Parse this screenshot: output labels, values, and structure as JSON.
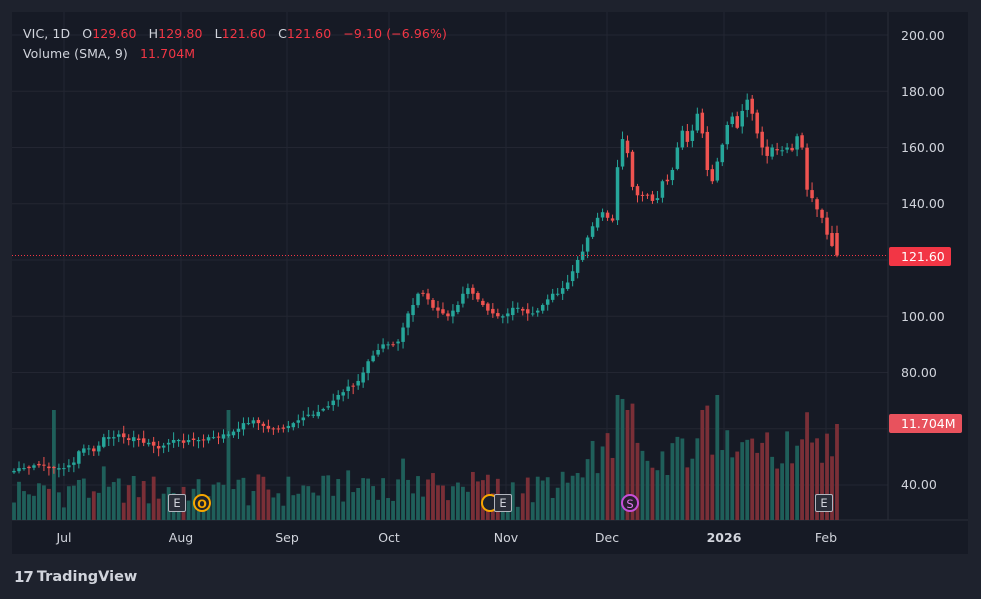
{
  "legend": {
    "symbol": "VIC, 1D",
    "o_key": "O",
    "open": "129.60",
    "h_key": "H",
    "high": "129.80",
    "l_key": "L",
    "low": "121.60",
    "c_key": "C",
    "close": "121.60",
    "change": "−9.10 (−6.96%)",
    "volume_label": "Volume (SMA, 9)",
    "volume_value": "11.704M"
  },
  "price_tag": "121.60",
  "volume_tag": "11.704M",
  "y_axis": [
    "200.00",
    "180.00",
    "160.00",
    "140.00",
    "121.60",
    "100.00",
    "80.00",
    "40.00"
  ],
  "x_axis": [
    "Jul",
    "Aug",
    "Sep",
    "Oct",
    "Nov",
    "Dec",
    "2026",
    "Feb"
  ],
  "events": [
    "E",
    "O",
    "E",
    "S",
    "E"
  ],
  "brand": {
    "logo": "17",
    "name": "TradingView"
  },
  "colors": {
    "up": "#26a69a",
    "down": "#ef5350",
    "background": "#161a25",
    "accent": "#f23645"
  },
  "chart_data": {
    "type": "candlestick",
    "symbol": "VIC",
    "interval": "1D",
    "y_range": [
      30,
      208
    ],
    "last_close": 121.6,
    "candles_approx_close": [
      45,
      46,
      46,
      46,
      47,
      47,
      47,
      46,
      46,
      46,
      46,
      47,
      48,
      52,
      53,
      53,
      52,
      54,
      57,
      57,
      57,
      58,
      57,
      56,
      57,
      56,
      55,
      55,
      54,
      53,
      54,
      55,
      56,
      56,
      55,
      56,
      56,
      56,
      56,
      57,
      57,
      57,
      58,
      58,
      59,
      60,
      62,
      62,
      63,
      62,
      61,
      60,
      60,
      60,
      60,
      61,
      62,
      63,
      64,
      65,
      65,
      66,
      67,
      68,
      70,
      72,
      73,
      75,
      75,
      77,
      80,
      84,
      86,
      88,
      90,
      90,
      90,
      91,
      96,
      101,
      104,
      108,
      108,
      106,
      103,
      102,
      101,
      100,
      102,
      104,
      108,
      110,
      108,
      106,
      104,
      102,
      101,
      100,
      100,
      101,
      103,
      103,
      102,
      101,
      101,
      102,
      104,
      106,
      108,
      108,
      110,
      112,
      116,
      120,
      123,
      128,
      132,
      135,
      137,
      135,
      134,
      153,
      163,
      158,
      146,
      143,
      143,
      143,
      141,
      142,
      148,
      148,
      152,
      160,
      166,
      162,
      166,
      172,
      165,
      152,
      148,
      155,
      161,
      168,
      171,
      167,
      173,
      177,
      172,
      165,
      160,
      157,
      160,
      159,
      159,
      160,
      159,
      164,
      160,
      145,
      142,
      138,
      135,
      129,
      125,
      121.6
    ]
  }
}
